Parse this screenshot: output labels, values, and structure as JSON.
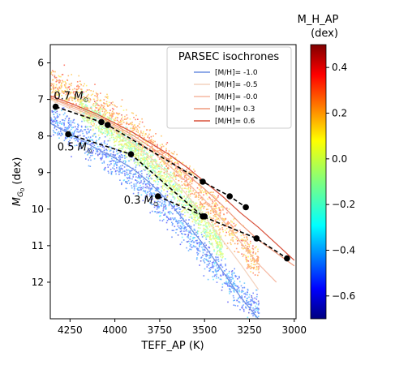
{
  "chart_data": {
    "type": "scatter",
    "title": "",
    "xlabel": "TEFF_AP (K)",
    "ylabel": "M_G0 (dex)",
    "ylabel_main": "M",
    "ylabel_sub": "G",
    "ylabel_subsub": "0",
    "ylabel_unit": "(dex)",
    "xlim": [
      4360,
      2990
    ],
    "ylim": [
      13,
      5.5
    ],
    "xticks": [
      4250,
      4000,
      3750,
      3500,
      3250,
      3000
    ],
    "yticks": [
      6,
      7,
      8,
      9,
      10,
      11,
      12
    ],
    "grid": false,
    "colorbar": {
      "label_line1": "M_H_AP",
      "label_line2": "(dex)",
      "range": [
        -0.7,
        0.5
      ],
      "ticks": [
        "0.4",
        "0.2",
        "0.0",
        "−0.2",
        "−0.4",
        "−0.6"
      ],
      "tick_values": [
        0.4,
        0.2,
        0.0,
        -0.2,
        -0.4,
        -0.6
      ],
      "colormap": "jet"
    },
    "legend": {
      "title": "PARSEC isochrones",
      "placement": "top-right",
      "entries": [
        {
          "label": "[M/H]= -1.0",
          "color": "#6d8fe0"
        },
        {
          "label": "[M/H]= -0.5",
          "color": "#f3d2bd"
        },
        {
          "label": "[M/H]= -0.0",
          "color": "#f5b7a0"
        },
        {
          "label": "[M/H]= 0.3",
          "color": "#ef9a7d"
        },
        {
          "label": "[M/H]= 0.6",
          "color": "#d8503a"
        }
      ]
    },
    "isochrones": [
      {
        "name": "[M/H]= -1.0",
        "color": "#6d8fe0",
        "points": [
          [
            4360,
            7.65
          ],
          [
            4250,
            7.95
          ],
          [
            4100,
            8.35
          ],
          [
            4000,
            8.6
          ],
          [
            3900,
            8.9
          ],
          [
            3800,
            9.3
          ],
          [
            3700,
            9.8
          ],
          [
            3600,
            10.4
          ],
          [
            3500,
            11.0
          ],
          [
            3400,
            11.7
          ],
          [
            3300,
            12.4
          ],
          [
            3200,
            13.0
          ]
        ]
      },
      {
        "name": "[M/H]= -0.5",
        "color": "#f3d2bd",
        "points": [
          [
            4360,
            7.0
          ],
          [
            4250,
            7.25
          ],
          [
            4100,
            7.6
          ],
          [
            4000,
            7.85
          ],
          [
            3900,
            8.2
          ],
          [
            3800,
            8.6
          ],
          [
            3700,
            9.05
          ],
          [
            3600,
            9.6
          ],
          [
            3500,
            10.2
          ],
          [
            3400,
            10.85
          ],
          [
            3300,
            11.5
          ],
          [
            3200,
            12.2
          ]
        ]
      },
      {
        "name": "[M/H]= -0.0",
        "color": "#f5b7a0",
        "points": [
          [
            4360,
            6.95
          ],
          [
            4250,
            7.2
          ],
          [
            4100,
            7.5
          ],
          [
            4000,
            7.75
          ],
          [
            3900,
            8.05
          ],
          [
            3800,
            8.4
          ],
          [
            3700,
            8.8
          ],
          [
            3600,
            9.25
          ],
          [
            3500,
            9.75
          ],
          [
            3400,
            10.3
          ],
          [
            3300,
            10.9
          ],
          [
            3200,
            11.5
          ],
          [
            3100,
            12.0
          ]
        ]
      },
      {
        "name": "[M/H]= 0.3",
        "color": "#ef9a7d",
        "points": [
          [
            4360,
            6.95
          ],
          [
            4250,
            7.15
          ],
          [
            4100,
            7.45
          ],
          [
            4000,
            7.7
          ],
          [
            3900,
            7.98
          ],
          [
            3800,
            8.3
          ],
          [
            3700,
            8.65
          ],
          [
            3600,
            9.05
          ],
          [
            3500,
            9.45
          ],
          [
            3400,
            9.9
          ],
          [
            3300,
            10.4
          ],
          [
            3200,
            10.85
          ],
          [
            3100,
            11.2
          ],
          [
            3000,
            11.55
          ]
        ]
      },
      {
        "name": "[M/H]= 0.6",
        "color": "#d8503a",
        "points": [
          [
            4360,
            6.9
          ],
          [
            4250,
            7.1
          ],
          [
            4100,
            7.4
          ],
          [
            4000,
            7.65
          ],
          [
            3900,
            7.9
          ],
          [
            3800,
            8.2
          ],
          [
            3700,
            8.5
          ],
          [
            3600,
            8.85
          ],
          [
            3500,
            9.25
          ],
          [
            3400,
            9.65
          ],
          [
            3300,
            10.1
          ],
          [
            3200,
            10.5
          ],
          [
            3100,
            10.95
          ],
          [
            3000,
            11.4
          ]
        ]
      }
    ],
    "mass_tracks": [
      {
        "label_main": "0.7 M",
        "label_sub": "⊙",
        "label_at": [
          4340,
          7.0
        ],
        "points": [
          [
            4330,
            7.2
          ],
          [
            4075,
            7.62
          ],
          [
            4040,
            7.7
          ],
          [
            3510,
            9.25
          ],
          [
            3360,
            9.65
          ],
          [
            3270,
            9.95
          ]
        ]
      },
      {
        "label_main": "0.5 M",
        "label_sub": "⊙",
        "label_at": [
          4320,
          8.4
        ],
        "points": [
          [
            4260,
            7.95
          ],
          [
            3910,
            8.5
          ],
          [
            3510,
            10.2
          ],
          [
            3210,
            10.8
          ],
          [
            3040,
            11.35
          ]
        ]
      },
      {
        "label_main": "0.3 M",
        "label_sub": "⊙",
        "label_at": [
          3950,
          9.85
        ],
        "points": [
          [
            3760,
            9.65
          ],
          [
            3500,
            10.2
          ]
        ]
      }
    ],
    "density_bands": [
      {
        "temps": [
          4360,
          4300,
          4200,
          4100,
          4000,
          3900,
          3800,
          3700,
          3600,
          3500,
          3400,
          3300,
          3200
        ],
        "y": [
          6.6,
          6.7,
          6.95,
          7.2,
          7.5,
          7.85,
          8.25,
          8.7,
          9.2,
          9.75,
          10.3,
          10.9,
          11.5
        ],
        "spread": 0.55,
        "meta": 0.2
      },
      {
        "temps": [
          4360,
          4300,
          4200,
          4100,
          4000,
          3900,
          3800,
          3700,
          3600,
          3500,
          3400,
          3300,
          3200
        ],
        "y": [
          7.5,
          7.7,
          8.0,
          8.35,
          8.7,
          9.1,
          9.55,
          10.05,
          10.6,
          11.2,
          11.8,
          12.35,
          12.8
        ],
        "spread": 0.55,
        "meta": -0.45
      },
      {
        "temps": [
          4200,
          4100,
          4000,
          3900,
          3800,
          3700,
          3600,
          3500,
          3400
        ],
        "y": [
          7.2,
          7.55,
          7.95,
          8.35,
          8.8,
          9.3,
          9.85,
          10.45,
          11.1
        ],
        "spread": 0.45,
        "meta": -0.05
      }
    ]
  }
}
